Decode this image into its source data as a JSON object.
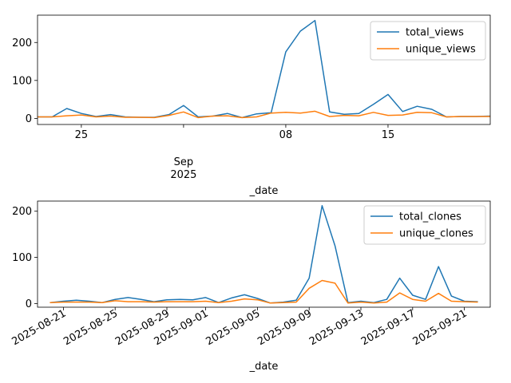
{
  "chart_data": [
    {
      "type": "line",
      "xlabel": "_date",
      "x_tick_labels": {
        "major_month": "Sep",
        "major_year": "2025",
        "minor": [
          "25",
          "08",
          "15"
        ]
      },
      "y_ticks": [
        0,
        100,
        200
      ],
      "ylim": [
        -16,
        272
      ],
      "xlim": [
        "2025-08-22",
        "2025-09-22"
      ],
      "legend_position": "upper right",
      "x": [
        "2025-08-22",
        "2025-08-23",
        "2025-08-24",
        "2025-08-25",
        "2025-08-26",
        "2025-08-27",
        "2025-08-28",
        "2025-08-29",
        "2025-08-30",
        "2025-08-31",
        "2025-09-01",
        "2025-09-02",
        "2025-09-03",
        "2025-09-04",
        "2025-09-05",
        "2025-09-06",
        "2025-09-07",
        "2025-09-08",
        "2025-09-09",
        "2025-09-10",
        "2025-09-11",
        "2025-09-12",
        "2025-09-13",
        "2025-09-14",
        "2025-09-15",
        "2025-09-16",
        "2025-09-17",
        "2025-09-18",
        "2025-09-19",
        "2025-09-20",
        "2025-09-21",
        "2025-09-22"
      ],
      "series": [
        {
          "name": "total_views",
          "color": "#1f77b4",
          "values": [
            4,
            4,
            26,
            13,
            5,
            10,
            4,
            3,
            3,
            10,
            34,
            4,
            6,
            13,
            2,
            12,
            15,
            175,
            230,
            258,
            17,
            11,
            13,
            37,
            63,
            18,
            32,
            24,
            4,
            5,
            5,
            6
          ]
        },
        {
          "name": "unique_views",
          "color": "#ff7f0e",
          "values": [
            4,
            4,
            7,
            9,
            4,
            6,
            3,
            3,
            2,
            8,
            17,
            2,
            6,
            7,
            2,
            4,
            14,
            16,
            14,
            19,
            5,
            8,
            7,
            16,
            8,
            9,
            16,
            15,
            4,
            5,
            5,
            5
          ]
        }
      ]
    },
    {
      "type": "line",
      "xlabel": "_date",
      "x_tick_labels": [
        "2025-08-21",
        "2025-08-25",
        "2025-08-29",
        "2025-09-01",
        "2025-09-05",
        "2025-09-09",
        "2025-09-13",
        "2025-09-17",
        "2025-09-21"
      ],
      "y_ticks": [
        0,
        100,
        200
      ],
      "ylim": [
        -8,
        222
      ],
      "xlim": [
        "2025-08-19",
        "2025-09-23"
      ],
      "legend_position": "upper right",
      "x": [
        "2025-08-20",
        "2025-08-21",
        "2025-08-22",
        "2025-08-23",
        "2025-08-24",
        "2025-08-25",
        "2025-08-26",
        "2025-08-27",
        "2025-08-28",
        "2025-08-29",
        "2025-08-30",
        "2025-08-31",
        "2025-09-01",
        "2025-09-02",
        "2025-09-03",
        "2025-09-04",
        "2025-09-05",
        "2025-09-06",
        "2025-09-07",
        "2025-09-08",
        "2025-09-09",
        "2025-09-10",
        "2025-09-11",
        "2025-09-12",
        "2025-09-13",
        "2025-09-14",
        "2025-09-15",
        "2025-09-16",
        "2025-09-17",
        "2025-09-18",
        "2025-09-19",
        "2025-09-20",
        "2025-09-21",
        "2025-09-22"
      ],
      "series": [
        {
          "name": "total_clones",
          "color": "#1f77b4",
          "values": [
            2,
            5,
            7,
            5,
            2,
            9,
            13,
            9,
            4,
            8,
            9,
            8,
            13,
            2,
            12,
            19,
            11,
            1,
            3,
            7,
            55,
            212,
            125,
            2,
            5,
            2,
            9,
            55,
            18,
            9,
            80,
            16,
            5,
            4
          ]
        },
        {
          "name": "unique_clones",
          "color": "#ff7f0e",
          "values": [
            2,
            3,
            3,
            3,
            2,
            6,
            4,
            4,
            3,
            4,
            4,
            4,
            5,
            2,
            5,
            10,
            8,
            1,
            2,
            3,
            33,
            50,
            44,
            1,
            3,
            1,
            3,
            23,
            9,
            5,
            22,
            5,
            4,
            3
          ]
        }
      ]
    }
  ]
}
